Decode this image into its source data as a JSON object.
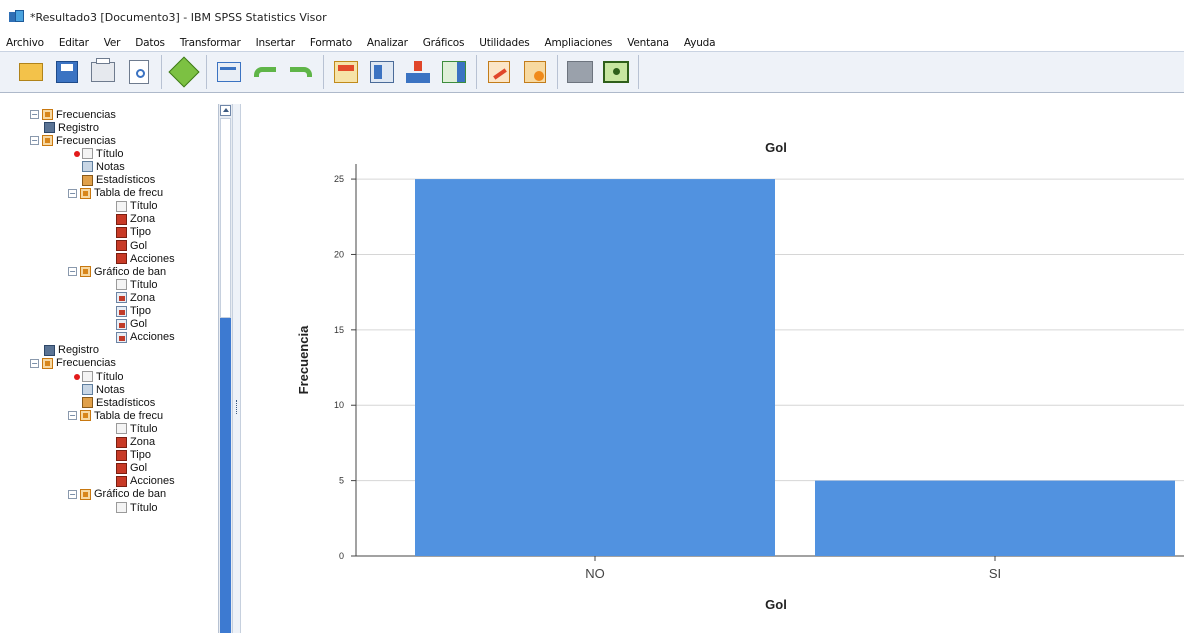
{
  "window": {
    "title": "*Resultado3 [Documento3] - IBM SPSS Statistics Visor"
  },
  "menu": [
    "Archivo",
    "Editar",
    "Ver",
    "Datos",
    "Transformar",
    "Insertar",
    "Formato",
    "Analizar",
    "Gráficos",
    "Utilidades",
    "Ampliaciones",
    "Ventana",
    "Ayuda"
  ],
  "toolbar": {
    "groups": [
      [
        "open-icon",
        "save-icon",
        "print-icon",
        "print-preview-icon"
      ],
      [
        "export-icon"
      ],
      [
        "recall-dialog-icon",
        "undo-icon",
        "redo-icon"
      ],
      [
        "goto-data-icon",
        "goto-case-icon",
        "variables-icon",
        "insert-table-icon"
      ],
      [
        "edit-icon",
        "designate-window-icon"
      ],
      [
        "show-icon",
        "hide-icon"
      ]
    ]
  },
  "outline": [
    {
      "text": "Frecuencias",
      "icon": "book",
      "twisty": "-",
      "level": 1
    },
    {
      "text": "Registro",
      "icon": "log",
      "level": 1
    },
    {
      "text": "Frecuencias",
      "icon": "book",
      "twisty": "-",
      "level": 1
    },
    {
      "text": "Título",
      "icon": "title",
      "level": 2,
      "active": true
    },
    {
      "text": "Notas",
      "icon": "notes",
      "level": 2
    },
    {
      "text": "Estadísticos",
      "icon": "stats",
      "level": 2
    },
    {
      "text": "Tabla de frecu",
      "icon": "book",
      "twisty": "-",
      "level": 2
    },
    {
      "text": "Título",
      "icon": "title",
      "level": 3
    },
    {
      "text": "Zona",
      "icon": "table",
      "level": 3
    },
    {
      "text": "Tipo",
      "icon": "table",
      "level": 3
    },
    {
      "text": "Gol",
      "icon": "table",
      "level": 3
    },
    {
      "text": "Acciones",
      "icon": "table",
      "level": 3
    },
    {
      "text": "Gráfico de ban",
      "icon": "book",
      "twisty": "-",
      "level": 2
    },
    {
      "text": "Título",
      "icon": "title",
      "level": 3
    },
    {
      "text": "Zona",
      "icon": "chart",
      "level": 3
    },
    {
      "text": "Tipo",
      "icon": "chart",
      "level": 3
    },
    {
      "text": "Gol",
      "icon": "chart",
      "level": 3
    },
    {
      "text": "Acciones",
      "icon": "chart",
      "level": 3
    },
    {
      "text": "Registro",
      "icon": "log",
      "level": 1
    },
    {
      "text": "Frecuencias",
      "icon": "book",
      "twisty": "-",
      "level": 1
    },
    {
      "text": "Título",
      "icon": "title",
      "level": 2,
      "active": true
    },
    {
      "text": "Notas",
      "icon": "notes",
      "level": 2
    },
    {
      "text": "Estadísticos",
      "icon": "stats",
      "level": 2
    },
    {
      "text": "Tabla de frecu",
      "icon": "book",
      "twisty": "-",
      "level": 2
    },
    {
      "text": "Título",
      "icon": "title",
      "level": 3
    },
    {
      "text": "Zona",
      "icon": "table",
      "level": 3
    },
    {
      "text": "Tipo",
      "icon": "table",
      "level": 3
    },
    {
      "text": "Gol",
      "icon": "table",
      "level": 3
    },
    {
      "text": "Acciones",
      "icon": "table",
      "level": 3
    },
    {
      "text": "Gráfico de ban",
      "icon": "book",
      "twisty": "-",
      "level": 2
    },
    {
      "text": "Título",
      "icon": "title",
      "level": 3
    }
  ],
  "chart_data": {
    "type": "bar",
    "title": "Gol",
    "xlabel": "Gol",
    "ylabel": "Frecuencia",
    "categories": [
      "NO",
      "SI"
    ],
    "values": [
      25,
      5
    ],
    "ylim": [
      0,
      26
    ],
    "yticks": [
      0,
      5,
      10,
      15,
      20,
      25
    ],
    "grid": true,
    "bar_color": "#5192e0"
  }
}
